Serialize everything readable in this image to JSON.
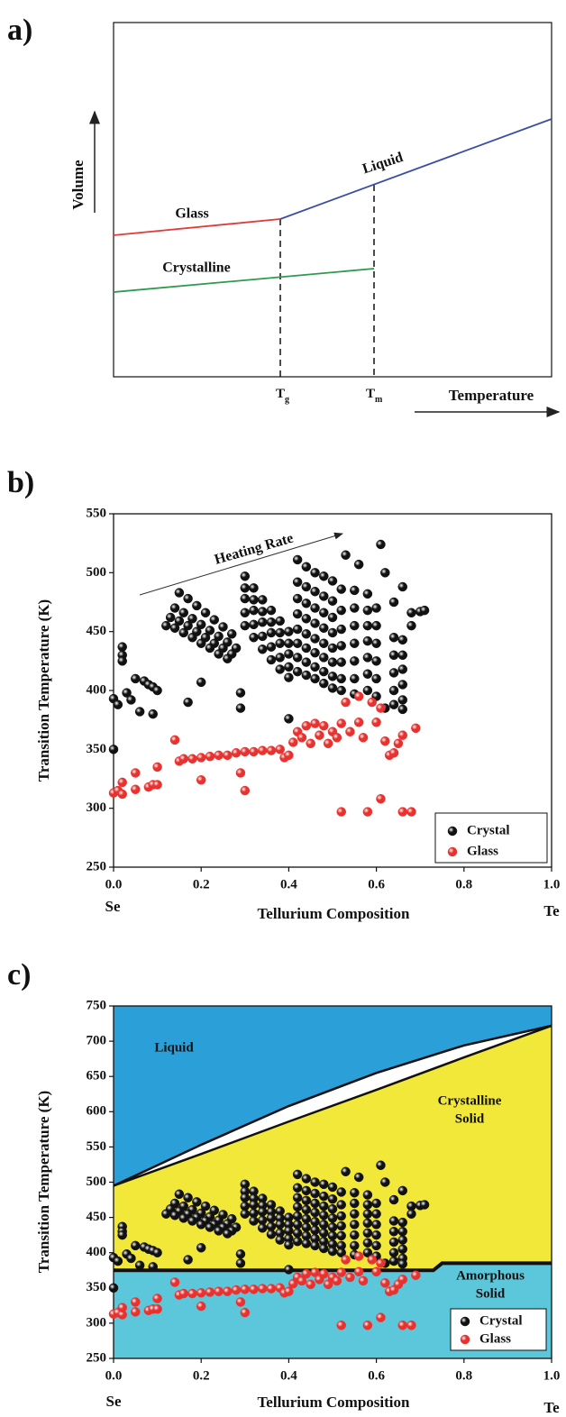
{
  "chart_data": [
    {
      "type": "schematic",
      "panel_label": "a)",
      "y_label": "Volume",
      "x_label": "Temperature",
      "curve_labels": {
        "glass": "Glass",
        "liquid": "Liquid",
        "crystalline": "Crystalline"
      },
      "markers": [
        {
          "symbol": "T",
          "subscript": "g"
        },
        {
          "symbol": "T",
          "subscript": "m"
        }
      ],
      "colors": {
        "glass": "#e23a36",
        "liquid": "#3b4ea3",
        "crystalline": "#2e9a4c"
      }
    },
    {
      "type": "scatter",
      "panel_label": "b)",
      "x_label": "Tellurium Composition",
      "y_label": "Transition Temperature (K)",
      "x_end_labels": [
        "Se",
        "Te"
      ],
      "annotation": "Heating Rate",
      "xlim": [
        0,
        1
      ],
      "ylim": [
        250,
        550
      ],
      "xticks": [
        {
          "value": 0,
          "label": "0.0"
        },
        0.2,
        0.4,
        0.6,
        0.8,
        {
          "value": 1,
          "label": "1.0"
        }
      ],
      "yticks": [
        250,
        300,
        350,
        400,
        450,
        500,
        550
      ],
      "legend": "bottom-right",
      "series": [
        {
          "name": "Crystal",
          "color": "#111111",
          "x": [
            0,
            0,
            0.01,
            0.02,
            0.02,
            0.02,
            0.03,
            0.04,
            0.05,
            0.06,
            0.07,
            0.08,
            0.09,
            0.09,
            0.1,
            0.17,
            0.2,
            0.29,
            0.29,
            0.4,
            0.15,
            0.17,
            0.19,
            0.21,
            0.23,
            0.25,
            0.27,
            0.14,
            0.16,
            0.18,
            0.2,
            0.22,
            0.24,
            0.26,
            0.28,
            0.13,
            0.15,
            0.17,
            0.19,
            0.21,
            0.23,
            0.25,
            0.27,
            0.12,
            0.14,
            0.16,
            0.18,
            0.2,
            0.22,
            0.24,
            0.26,
            0.3,
            0.32,
            0.34,
            0.36,
            0.38,
            0.4,
            0.3,
            0.32,
            0.34,
            0.36,
            0.38,
            0.4,
            0.3,
            0.32,
            0.34,
            0.36,
            0.38,
            0.4,
            0.3,
            0.32,
            0.34,
            0.36,
            0.38,
            0.4,
            0.3,
            0.32,
            0.34,
            0.36,
            0.38,
            0.4,
            0.42,
            0.42,
            0.42,
            0.42,
            0.42,
            0.42,
            0.42,
            0.42,
            0.44,
            0.44,
            0.44,
            0.44,
            0.44,
            0.44,
            0.44,
            0.44,
            0.46,
            0.46,
            0.46,
            0.46,
            0.46,
            0.46,
            0.46,
            0.46,
            0.48,
            0.48,
            0.48,
            0.48,
            0.48,
            0.48,
            0.48,
            0.48,
            0.5,
            0.5,
            0.5,
            0.5,
            0.5,
            0.5,
            0.5,
            0.5,
            0.52,
            0.52,
            0.52,
            0.52,
            0.52,
            0.52,
            0.52,
            0.53,
            0.55,
            0.55,
            0.55,
            0.55,
            0.55,
            0.55,
            0.55,
            0.56,
            0.58,
            0.58,
            0.58,
            0.58,
            0.58,
            0.58,
            0.58,
            0.6,
            0.6,
            0.6,
            0.6,
            0.6,
            0.6,
            0.61,
            0.62,
            0.62,
            0.64,
            0.64,
            0.64,
            0.64,
            0.64,
            0.64,
            0.66,
            0.66,
            0.66,
            0.66,
            0.66,
            0.66,
            0.66,
            0.68,
            0.68,
            0.7,
            0.71
          ],
          "y": [
            393,
            350,
            388,
            437,
            430,
            425,
            398,
            392,
            410,
            382,
            408,
            405,
            380,
            403,
            400,
            390,
            407,
            398,
            385,
            376,
            483,
            478,
            472,
            466,
            460,
            454,
            448,
            470,
            466,
            461,
            456,
            451,
            446,
            441,
            436,
            462,
            459,
            455,
            450,
            445,
            440,
            436,
            431,
            455,
            453,
            449,
            445,
            440,
            436,
            431,
            427,
            497,
            487,
            477,
            468,
            459,
            450,
            487,
            477,
            467,
            458,
            449,
            440,
            478,
            468,
            458,
            449,
            440,
            431,
            466,
            456,
            446,
            437,
            428,
            420,
            455,
            445,
            435,
            426,
            418,
            411,
            511,
            492,
            478,
            465,
            452,
            440,
            428,
            416,
            505,
            488,
            474,
            461,
            448,
            436,
            424,
            413,
            500,
            484,
            470,
            457,
            444,
            432,
            420,
            410,
            497,
            480,
            466,
            453,
            440,
            428,
            416,
            406,
            493,
            476,
            462,
            449,
            436,
            424,
            412,
            402,
            486,
            468,
            452,
            438,
            424,
            410,
            400,
            515,
            485,
            470,
            455,
            440,
            425,
            410,
            397,
            507,
            482,
            468,
            455,
            442,
            428,
            414,
            400,
            470,
            455,
            440,
            425,
            410,
            395,
            524,
            500,
            385,
            475,
            445,
            430,
            415,
            400,
            388,
            488,
            443,
            430,
            418,
            405,
            392,
            384,
            466,
            455,
            467,
            468
          ]
        },
        {
          "name": "Glass",
          "color": "#e8322f",
          "x": [
            0,
            0.01,
            0.02,
            0.02,
            0.05,
            0.05,
            0.08,
            0.09,
            0.1,
            0.1,
            0.14,
            0.15,
            0.16,
            0.18,
            0.2,
            0.2,
            0.22,
            0.24,
            0.26,
            0.28,
            0.29,
            0.3,
            0.3,
            0.32,
            0.34,
            0.36,
            0.38,
            0.39,
            0.4,
            0.41,
            0.42,
            0.43,
            0.44,
            0.45,
            0.46,
            0.47,
            0.48,
            0.49,
            0.5,
            0.51,
            0.52,
            0.52,
            0.53,
            0.54,
            0.56,
            0.56,
            0.57,
            0.58,
            0.59,
            0.6,
            0.61,
            0.61,
            0.62,
            0.63,
            0.64,
            0.65,
            0.66,
            0.66,
            0.68,
            0.69
          ],
          "y": [
            313,
            315,
            312,
            322,
            316,
            330,
            318,
            320,
            335,
            320,
            358,
            340,
            342,
            342,
            343,
            324,
            344,
            345,
            345,
            347,
            330,
            315,
            348,
            348,
            349,
            349,
            350,
            343,
            345,
            356,
            365,
            360,
            370,
            355,
            372,
            362,
            370,
            355,
            365,
            360,
            372,
            297,
            390,
            365,
            373,
            395,
            360,
            297,
            390,
            373,
            385,
            308,
            357,
            345,
            347,
            355,
            297,
            362,
            297,
            368
          ]
        }
      ]
    },
    {
      "type": "phase-diagram",
      "panel_label": "c)",
      "x_label": "Tellurium Composition",
      "y_label": "Transition Temperature (K)",
      "x_end_labels": [
        "Se",
        "Te"
      ],
      "xlim": [
        0,
        1
      ],
      "ylim": [
        250,
        750
      ],
      "xticks": [
        {
          "value": 0,
          "label": "0.0"
        },
        0.2,
        0.4,
        0.6,
        0.8,
        {
          "value": 1,
          "label": "1.0"
        }
      ],
      "yticks": [
        250,
        300,
        350,
        400,
        450,
        500,
        550,
        600,
        650,
        700,
        750
      ],
      "legend": "bottom-right",
      "region_labels": {
        "liquid": [
          "Liquid"
        ],
        "crystalline": [
          "Crystalline",
          "Solid"
        ],
        "amorphous": [
          "Amorphous",
          "Solid"
        ]
      },
      "region_colors": {
        "liquid": "#2a9fd8",
        "gap": "#ffffff",
        "crystalline": "#f2e83a",
        "amorphous": "#5cc6da"
      },
      "boundaries": {
        "liquidus": {
          "x": [
            0,
            0.2,
            0.4,
            0.6,
            0.8,
            1
          ],
          "y": [
            495,
            553,
            608,
            655,
            694,
            722
          ]
        },
        "solidus": {
          "x": [
            0,
            0.2,
            0.4,
            0.6,
            0.8,
            1
          ],
          "y": [
            495,
            540,
            586,
            631,
            677,
            722
          ]
        },
        "glass_transition": {
          "x": [
            0,
            0.73,
            0.75,
            1
          ],
          "y": [
            375,
            375,
            385,
            385
          ]
        }
      }
    }
  ]
}
